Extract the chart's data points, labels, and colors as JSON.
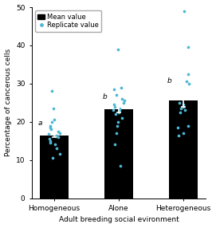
{
  "categories": [
    "Homogeneous",
    "Alone",
    "Heterogeneous"
  ],
  "bar_means": [
    16.5,
    23.2,
    25.5
  ],
  "bar_errors": [
    0.6,
    0.8,
    1.5
  ],
  "bar_color": "#000000",
  "dot_color": "#4db8d4",
  "xlabel": "Adult breeding social evironment",
  "ylabel": "Percentage of cancerous cells",
  "ylim": [
    0,
    50
  ],
  "yticks": [
    0,
    10,
    20,
    30,
    40,
    50
  ],
  "title": "",
  "legend_labels": [
    "Mean value",
    "Replicate value"
  ],
  "sig_labels": [
    "a",
    "b",
    "b"
  ],
  "sig_label_offsets": [
    1.5,
    1.5,
    2.8
  ],
  "replicate_data": {
    "Homogeneous": [
      10.5,
      11.5,
      13.0,
      14.0,
      14.5,
      15.0,
      15.5,
      16.0,
      16.2,
      16.5,
      16.8,
      17.0,
      17.5,
      18.0,
      18.5,
      19.0,
      20.0,
      20.5,
      23.5,
      28.0
    ],
    "Alone": [
      8.5,
      14.0,
      17.0,
      19.0,
      20.0,
      21.0,
      22.0,
      22.5,
      23.0,
      23.0,
      23.5,
      24.0,
      24.5,
      25.0,
      25.5,
      26.0,
      27.0,
      28.5,
      29.0,
      39.0
    ],
    "Heterogeneous": [
      16.5,
      17.0,
      18.5,
      19.0,
      22.5,
      23.0,
      23.5,
      24.0,
      24.5,
      25.0,
      30.0,
      30.5,
      32.5,
      39.5,
      49.0
    ]
  }
}
